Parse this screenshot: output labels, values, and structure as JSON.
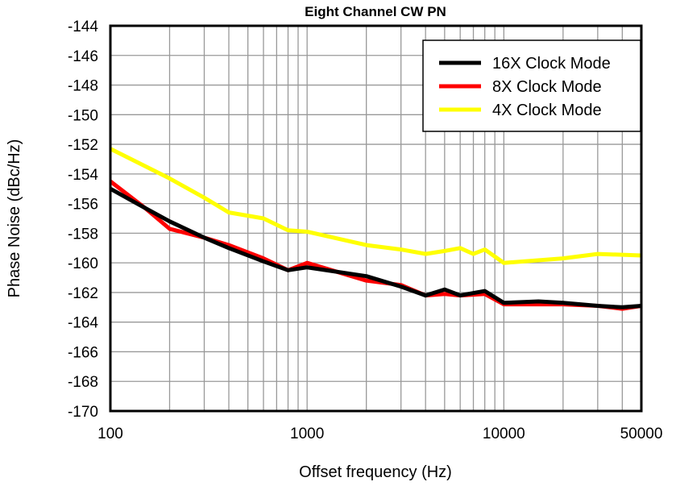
{
  "chart_data": {
    "type": "line",
    "title": "Eight Channel  CW PN",
    "xlabel": "Offset frequency (Hz)",
    "ylabel": "Phase Noise (dBc/Hz)",
    "xscale": "log",
    "xlim": [
      100,
      50000
    ],
    "ylim": [
      -170,
      -144
    ],
    "xticks": [
      "100",
      "1000",
      "10000",
      "50000"
    ],
    "yticks": [
      "-144",
      "-146",
      "-148",
      "-150",
      "-152",
      "-154",
      "-156",
      "-158",
      "-160",
      "-162",
      "-164",
      "-166",
      "-168",
      "-170"
    ],
    "grid": true,
    "legend_position": "top-right",
    "series": [
      {
        "name": "16X Clock Mode",
        "color": "#000000",
        "x": [
          100,
          150,
          200,
          300,
          400,
          600,
          800,
          1000,
          2000,
          3000,
          4000,
          5000,
          6000,
          8000,
          10000,
          15000,
          20000,
          30000,
          40000,
          50000
        ],
        "y": [
          -155,
          -156.3,
          -157.2,
          -158.3,
          -159,
          -159.9,
          -160.5,
          -160.3,
          -160.9,
          -161.6,
          -162.2,
          -161.8,
          -162.2,
          -161.9,
          -162.7,
          -162.6,
          -162.7,
          -162.9,
          -163,
          -162.9
        ]
      },
      {
        "name": "8X Clock Mode",
        "color": "#ff0000",
        "x": [
          100,
          150,
          200,
          300,
          400,
          600,
          800,
          1000,
          2000,
          3000,
          4000,
          5000,
          6000,
          8000,
          10000,
          20000,
          30000,
          40000,
          50000
        ],
        "y": [
          -154.5,
          -156.3,
          -157.7,
          -158.3,
          -158.8,
          -159.7,
          -160.5,
          -160,
          -161.2,
          -161.5,
          -162.2,
          -162.1,
          -162.2,
          -162.1,
          -162.8,
          -162.8,
          -162.9,
          -163.1,
          -162.9
        ]
      },
      {
        "name": "4X Clock Mode",
        "color": "#ffff00",
        "x": [
          100,
          200,
          300,
          400,
          600,
          800,
          1000,
          2000,
          3000,
          4000,
          5000,
          6000,
          7000,
          8000,
          10000,
          20000,
          30000,
          50000
        ],
        "y": [
          -152.3,
          -154.3,
          -155.6,
          -156.6,
          -157,
          -157.8,
          -157.9,
          -158.8,
          -159.1,
          -159.4,
          -159.2,
          -159.0,
          -159.4,
          -159.1,
          -160.0,
          -159.7,
          -159.4,
          -159.5
        ]
      }
    ]
  }
}
